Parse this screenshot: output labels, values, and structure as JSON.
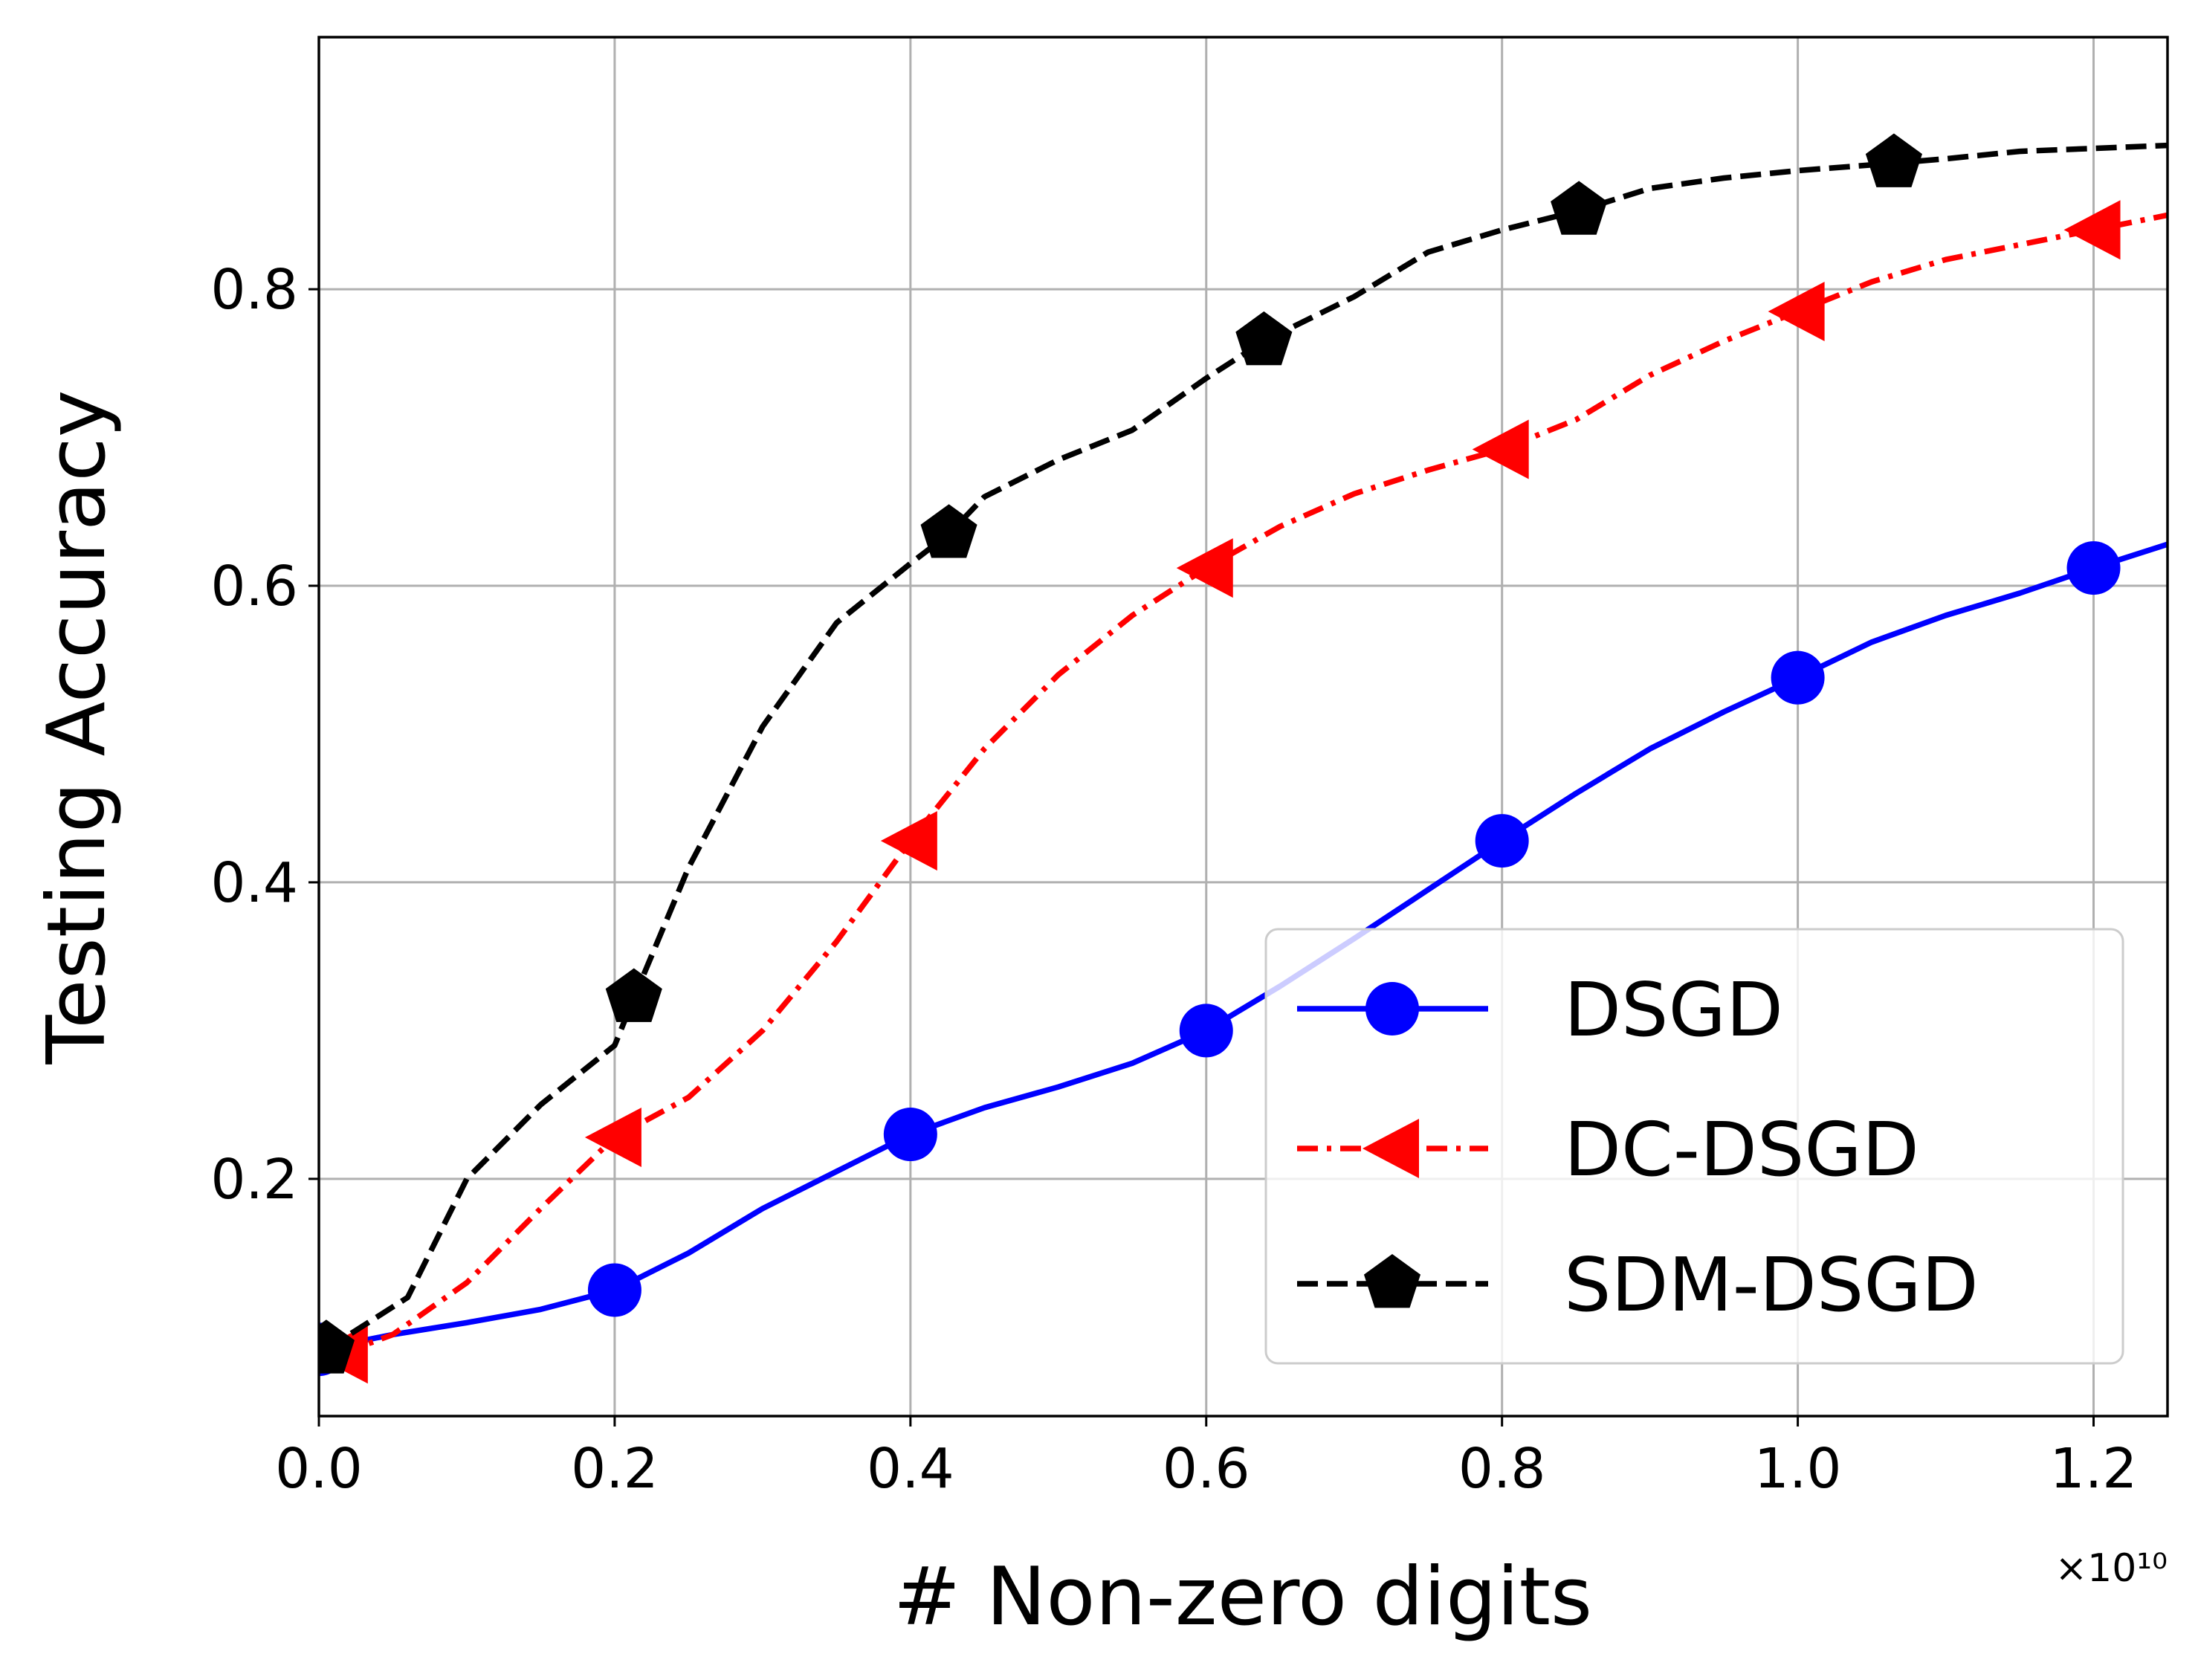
{
  "chart_data": {
    "type": "line",
    "xlabel": "# Non-zero digits",
    "ylabel": "Testing Accuracy",
    "x_offset_label": "×10¹⁰",
    "xlim": [
      0.0,
      1.25
    ],
    "ylim": [
      0.04,
      0.97
    ],
    "x_ticks": [
      0.0,
      0.2,
      0.4,
      0.6,
      0.8,
      1.0,
      1.2
    ],
    "x_tick_labels": [
      "0.0",
      "0.2",
      "0.4",
      "0.6",
      "0.8",
      "1.0",
      "1.2"
    ],
    "y_ticks": [
      0.2,
      0.4,
      0.6,
      0.8
    ],
    "y_tick_labels": [
      "0.2",
      "0.4",
      "0.6",
      "0.8"
    ],
    "grid": true,
    "legend_position": "bottom-right",
    "series": [
      {
        "name": "DSGD",
        "color": "#0000ff",
        "linestyle": "solid",
        "marker": "circle",
        "x": [
          0.0,
          0.05,
          0.1,
          0.15,
          0.2,
          0.25,
          0.3,
          0.35,
          0.4,
          0.45,
          0.5,
          0.55,
          0.6,
          0.65,
          0.7,
          0.75,
          0.8,
          0.85,
          0.9,
          0.95,
          1.0,
          1.05,
          1.1,
          1.15,
          1.2,
          1.25
        ],
        "y": [
          0.085,
          0.095,
          0.103,
          0.112,
          0.125,
          0.15,
          0.18,
          0.205,
          0.23,
          0.248,
          0.262,
          0.278,
          0.3,
          0.33,
          0.362,
          0.395,
          0.428,
          0.46,
          0.49,
          0.515,
          0.538,
          0.562,
          0.58,
          0.595,
          0.612,
          0.628
        ],
        "markers_x": [
          0.0,
          0.2,
          0.4,
          0.6,
          0.8,
          1.0,
          1.2
        ],
        "markers_y": [
          0.085,
          0.125,
          0.23,
          0.3,
          0.428,
          0.538,
          0.612
        ]
      },
      {
        "name": "DC-DSGD",
        "color": "#ff0000",
        "linestyle": "dashdot",
        "marker": "triangle-left",
        "x": [
          0.015,
          0.05,
          0.1,
          0.15,
          0.2,
          0.25,
          0.3,
          0.35,
          0.4,
          0.45,
          0.5,
          0.55,
          0.6,
          0.65,
          0.7,
          0.75,
          0.8,
          0.85,
          0.9,
          0.95,
          1.0,
          1.05,
          1.1,
          1.15,
          1.2,
          1.25
        ],
        "y": [
          0.082,
          0.095,
          0.13,
          0.18,
          0.228,
          0.255,
          0.3,
          0.36,
          0.428,
          0.49,
          0.54,
          0.58,
          0.612,
          0.64,
          0.662,
          0.678,
          0.692,
          0.712,
          0.742,
          0.765,
          0.785,
          0.805,
          0.82,
          0.83,
          0.84,
          0.85
        ],
        "markers_x": [
          0.015,
          0.2,
          0.4,
          0.6,
          0.8,
          1.0,
          1.2
        ],
        "markers_y": [
          0.082,
          0.228,
          0.428,
          0.612,
          0.692,
          0.785,
          0.84
        ]
      },
      {
        "name": "SDM-DSGD",
        "color": "#000000",
        "linestyle": "dashed",
        "marker": "pentagon",
        "x": [
          0.005,
          0.06,
          0.1,
          0.15,
          0.2,
          0.213,
          0.25,
          0.3,
          0.35,
          0.4,
          0.426,
          0.45,
          0.5,
          0.55,
          0.6,
          0.639,
          0.7,
          0.75,
          0.8,
          0.852,
          0.9,
          0.95,
          1.0,
          1.065,
          1.1,
          1.15,
          1.2,
          1.25
        ],
        "y": [
          0.085,
          0.12,
          0.2,
          0.25,
          0.29,
          0.322,
          0.41,
          0.505,
          0.575,
          0.615,
          0.635,
          0.66,
          0.685,
          0.705,
          0.74,
          0.765,
          0.795,
          0.825,
          0.84,
          0.853,
          0.868,
          0.875,
          0.88,
          0.885,
          0.888,
          0.893,
          0.895,
          0.897
        ],
        "markers_x": [
          0.005,
          0.213,
          0.426,
          0.639,
          0.852,
          1.065
        ],
        "markers_y": [
          0.085,
          0.322,
          0.635,
          0.765,
          0.853,
          0.885
        ]
      }
    ]
  }
}
